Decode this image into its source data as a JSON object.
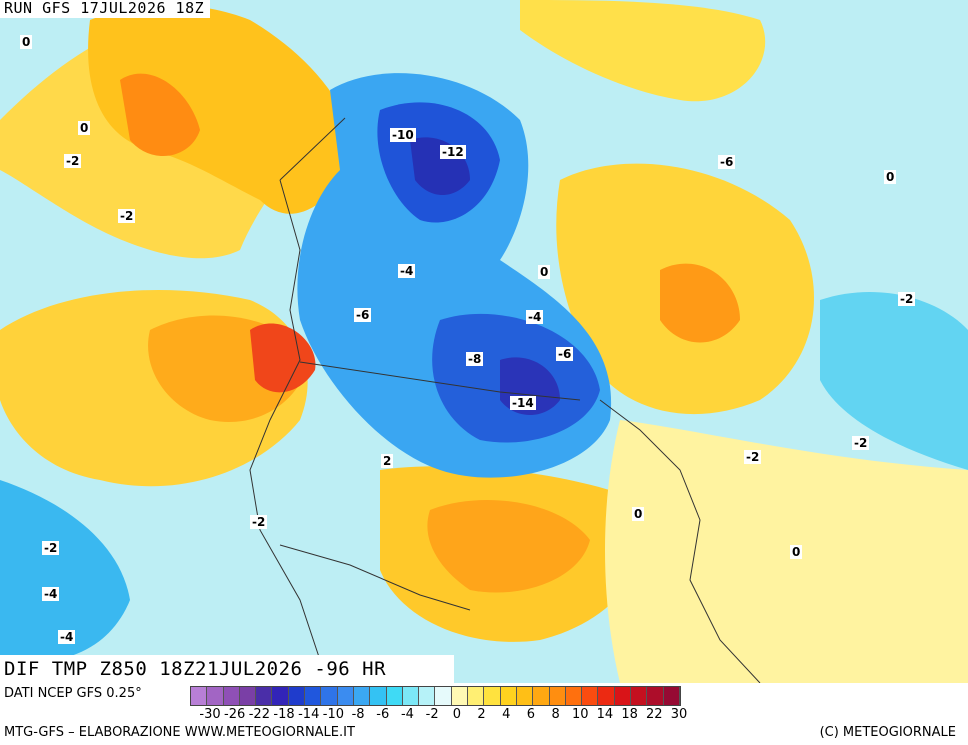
{
  "header": {
    "run_title": "RUN GFS 17JUL2026 18Z"
  },
  "map": {
    "field_title": "DIF TMP Z850 18Z21JUL2026 -96 HR",
    "contour_labels": [
      "0",
      "0",
      "-2",
      "-2",
      "-4",
      "-4",
      "-6",
      "-6",
      "-8",
      "-10",
      "-12",
      "-14",
      "2",
      "0",
      "-2",
      "-4",
      "0",
      "-2",
      "-6",
      "0",
      "-4",
      "-2",
      "0",
      "-2",
      "-2"
    ]
  },
  "legend": {
    "source": "DATI NCEP GFS 0.25°",
    "tick_labels": [
      "-30",
      "-26",
      "-22",
      "-18",
      "-14",
      "-10",
      "-8",
      "-6",
      "-4",
      "-2",
      "0",
      "2",
      "4",
      "6",
      "8",
      "10",
      "14",
      "18",
      "22",
      "30"
    ],
    "colors": [
      "#b87fd6",
      "#a265c4",
      "#8f50b6",
      "#7a3fa6",
      "#4a2ea8",
      "#3224b8",
      "#1f3ccc",
      "#2057dd",
      "#2f74e8",
      "#3b8cf0",
      "#3ba8f3",
      "#34c2f3",
      "#3fdaf5",
      "#7ce8f7",
      "#b6f2f8",
      "#e6fafb",
      "#fff9b4",
      "#ffef73",
      "#ffe23e",
      "#ffd21f",
      "#ffbf16",
      "#ffa812",
      "#ff8e10",
      "#ff700e",
      "#fa4c10",
      "#ec2a12",
      "#d91418",
      "#c4101f",
      "#ad0d2a",
      "#960a33"
    ]
  },
  "footer": {
    "credits_left": "MTG-GFS – ELABORAZIONE WWW.METEOGIORNALE.IT",
    "credits_right": "(C) METEOGIORNALE"
  }
}
